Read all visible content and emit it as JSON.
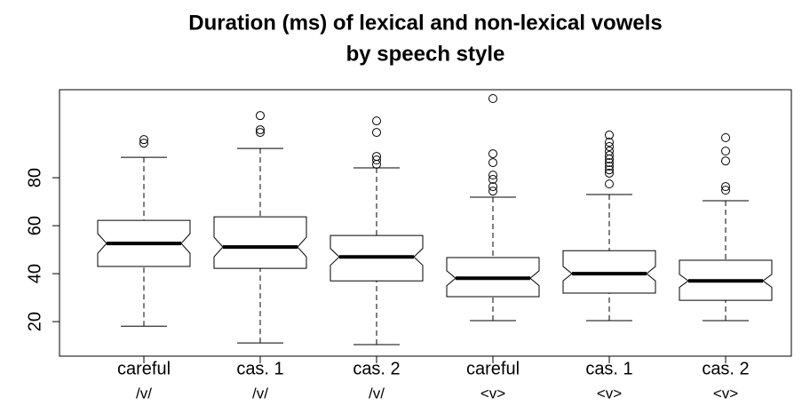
{
  "chart_data": {
    "type": "boxplot",
    "title": [
      "Duration (ms) of lexical and non-lexical vowels",
      "by speech style"
    ],
    "categories": [
      [
        "careful",
        "/v/"
      ],
      [
        "cas. 1",
        "/v/"
      ],
      [
        "cas. 2",
        "/v/"
      ],
      [
        "careful",
        "<v>"
      ],
      [
        "cas. 1",
        "<v>"
      ],
      [
        "cas. 2",
        "<v>"
      ]
    ],
    "whisker_low": [
      18.1,
      11.1,
      10.4,
      20.4,
      20.4,
      20.4
    ],
    "q1": [
      43,
      42.2,
      37,
      30.4,
      31.9,
      28.9
    ],
    "median": [
      52.6,
      51.1,
      47,
      38.1,
      40,
      37
    ],
    "q3": [
      62.2,
      63.7,
      55.9,
      46.7,
      49.6,
      45.6
    ],
    "whisker_high": [
      88.5,
      92.2,
      84.1,
      71.9,
      73,
      70.4
    ],
    "notch_low": [
      48.5,
      47,
      43.5,
      35,
      37,
      34.3
    ],
    "notch_high": [
      56.7,
      55.2,
      50.5,
      41.2,
      43,
      39.7
    ],
    "outliers": [
      [
        95.9,
        94.4
      ],
      [
        105.9,
        100,
        98.9
      ],
      [
        103.7,
        98.9,
        88.9,
        87.4,
        85.6
      ],
      [
        113,
        90,
        86.3,
        81.1,
        79.3,
        76.3,
        74.4
      ],
      [
        97.8,
        94.8,
        93,
        91.1,
        89.3,
        87.8,
        86.3,
        84.8,
        83.3,
        81.9,
        77.4
      ],
      [
        96.7,
        91.1,
        87,
        76.3,
        74.8
      ]
    ],
    "color": "#000000",
    "ylim": [
      5.6,
      116.7
    ],
    "yticks": [
      20,
      40,
      60,
      80
    ]
  }
}
